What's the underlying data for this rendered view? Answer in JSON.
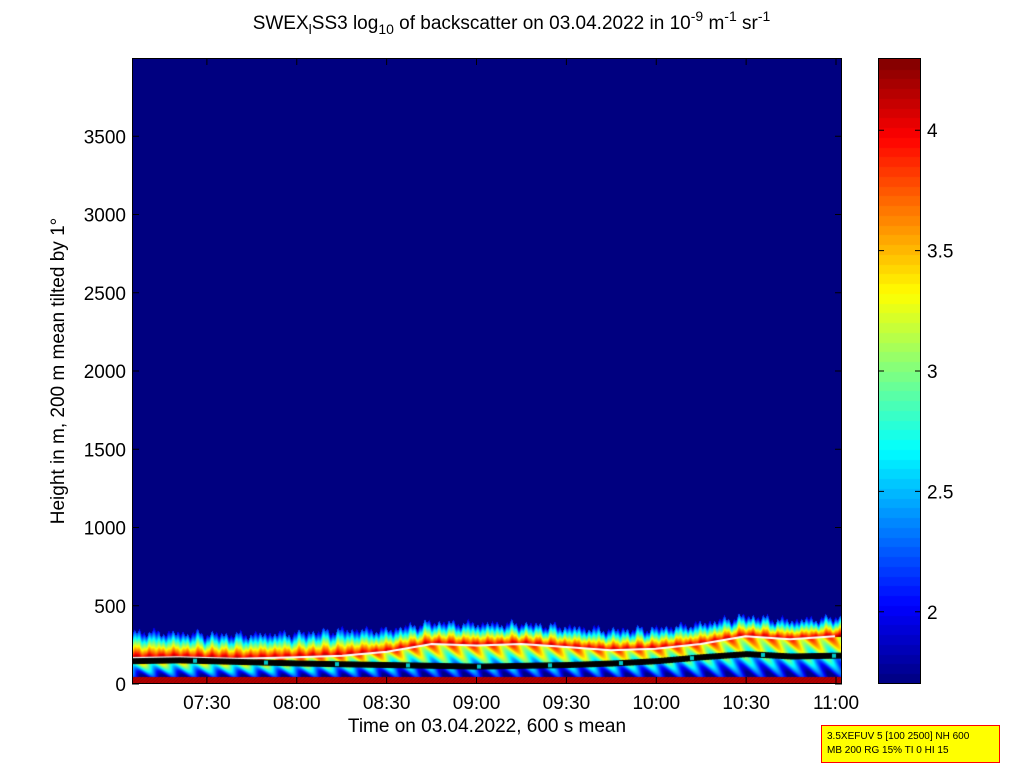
{
  "title": {
    "prefix": "SWEX",
    "sub1": "l",
    "mid1": "SS3 log",
    "sub2": "10",
    "mid2": " of backscatter on 03.04.2022 in 10",
    "sup1": "-9",
    "mid3": " m",
    "sup2": "-1",
    "mid4": " sr",
    "sup3": "-1"
  },
  "info_box": {
    "line1": "3.5XEFUV 5 [100 2500] NH 600",
    "line2": "MB 200 RG 15% TI 0 HI 15"
  },
  "colors": {
    "background": "#00008f",
    "boundary_line": "#ffffff",
    "layer_marker": "#000000",
    "cloud_marker": "#00c8c8",
    "info_border": "#ff0000",
    "info_fill": "#ffff00"
  },
  "chart_data": {
    "type": "heatmap",
    "title": "SWEX_lSS3 log10 of backscatter on 03.04.2022 in 10^-9 m^-1 sr^-1",
    "xlabel": "Time on 03.04.2022, 600 s mean",
    "ylabel": "Height in m, 200 m mean tilted by 1°",
    "x_tick_labels": [
      "07:30",
      "08:00",
      "08:30",
      "09:00",
      "09:30",
      "10:00",
      "10:30",
      "11:00"
    ],
    "x_tick_values": [
      "07:30",
      "08:00",
      "08:30",
      "09:00",
      "09:30",
      "10:00",
      "10:30",
      "11:00"
    ],
    "xlim": [
      "07:05",
      "11:02"
    ],
    "y_ticks": [
      0,
      500,
      1000,
      1500,
      2000,
      2500,
      3000,
      3500
    ],
    "ylim": [
      0,
      4000
    ],
    "colorbar": {
      "colormap": "jet",
      "ticks": [
        2,
        2.5,
        3,
        3.5,
        4
      ],
      "range": [
        1.7,
        4.3
      ]
    },
    "layer_top_height_m": [
      [
        "07:05",
        330
      ],
      [
        "07:20",
        320
      ],
      [
        "07:40",
        310
      ],
      [
        "08:00",
        320
      ],
      [
        "08:15",
        340
      ],
      [
        "08:30",
        340
      ],
      [
        "08:45",
        390
      ],
      [
        "09:00",
        380
      ],
      [
        "09:15",
        380
      ],
      [
        "09:30",
        360
      ],
      [
        "09:45",
        340
      ],
      [
        "10:00",
        350
      ],
      [
        "10:15",
        380
      ],
      [
        "10:30",
        430
      ],
      [
        "10:45",
        400
      ],
      [
        "11:00",
        420
      ]
    ],
    "boundary_layer_height_m": [
      [
        "07:05",
        160
      ],
      [
        "07:20",
        165
      ],
      [
        "07:40",
        155
      ],
      [
        "08:00",
        165
      ],
      [
        "08:15",
        175
      ],
      [
        "08:30",
        200
      ],
      [
        "08:45",
        250
      ],
      [
        "09:00",
        240
      ],
      [
        "09:15",
        250
      ],
      [
        "09:30",
        230
      ],
      [
        "09:45",
        210
      ],
      [
        "10:00",
        220
      ],
      [
        "10:15",
        250
      ],
      [
        "10:30",
        300
      ],
      [
        "10:45",
        280
      ],
      [
        "11:00",
        300
      ]
    ],
    "layer_marker_height_m": [
      [
        "07:05",
        140
      ],
      [
        "07:20",
        145
      ],
      [
        "07:40",
        135
      ],
      [
        "08:00",
        125
      ],
      [
        "08:15",
        120
      ],
      [
        "08:30",
        115
      ],
      [
        "08:45",
        110
      ],
      [
        "09:00",
        105
      ],
      [
        "09:15",
        110
      ],
      [
        "09:30",
        115
      ],
      [
        "09:45",
        125
      ],
      [
        "10:00",
        140
      ],
      [
        "10:15",
        165
      ],
      [
        "10:30",
        185
      ],
      [
        "10:45",
        170
      ],
      [
        "11:00",
        175
      ]
    ]
  }
}
